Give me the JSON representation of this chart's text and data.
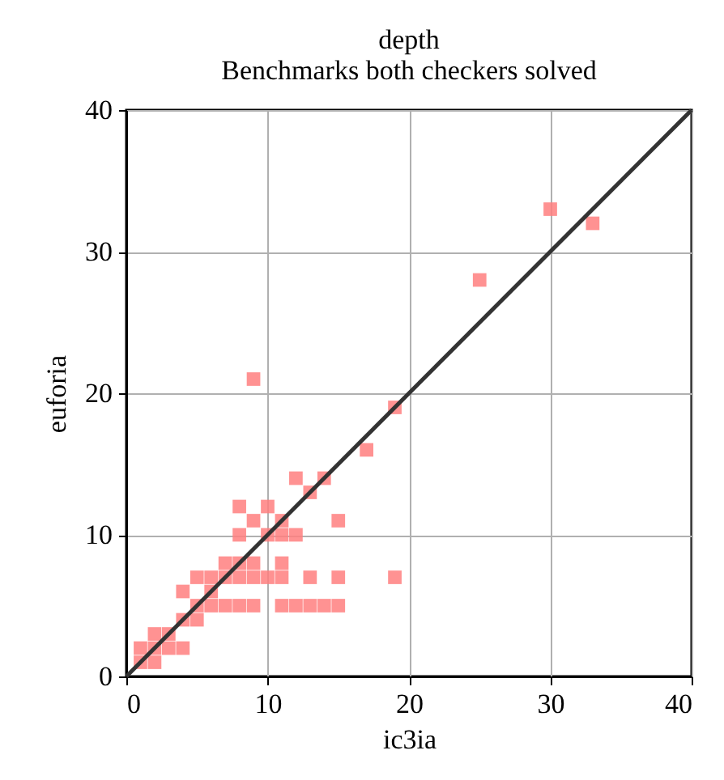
{
  "chart_data": {
    "type": "scatter",
    "title": "depth",
    "subtitle": "Benchmarks both checkers solved",
    "xlabel": "ic3ia",
    "ylabel": "euforia",
    "xlim": [
      0,
      40
    ],
    "ylim": [
      0,
      40
    ],
    "xticks": [
      0,
      10,
      20,
      30,
      40
    ],
    "yticks": [
      0,
      10,
      20,
      30,
      40
    ],
    "grid": true,
    "marker": "square",
    "series": [
      {
        "color": "#ff7f7f",
        "x": [
          30,
          33,
          25,
          9,
          19,
          17,
          15,
          19,
          12,
          14,
          13,
          8,
          10,
          9,
          11,
          8,
          10,
          11,
          12,
          7,
          8,
          9,
          11,
          5,
          6,
          7,
          8,
          9,
          10,
          11,
          13,
          15,
          4,
          6,
          5,
          6,
          7,
          8,
          9,
          11,
          12,
          13,
          14,
          15,
          4,
          5,
          2,
          3,
          3,
          4,
          1,
          2,
          1,
          2
        ],
        "values": [
          33,
          32,
          28,
          21,
          19,
          16,
          11,
          7,
          14,
          14,
          13,
          12,
          12,
          11,
          11,
          10,
          10,
          10,
          10,
          8,
          8,
          8,
          8,
          7,
          7,
          7,
          7,
          7,
          7,
          7,
          7,
          7,
          6,
          6,
          5,
          5,
          5,
          5,
          5,
          5,
          5,
          5,
          5,
          5,
          4,
          4,
          3,
          3,
          2,
          2,
          1,
          2,
          2,
          1
        ]
      },
      {
        "type": "line",
        "color": "#333333",
        "marker": "none",
        "x": [
          0,
          40
        ],
        "values": [
          0,
          40
        ]
      }
    ]
  }
}
